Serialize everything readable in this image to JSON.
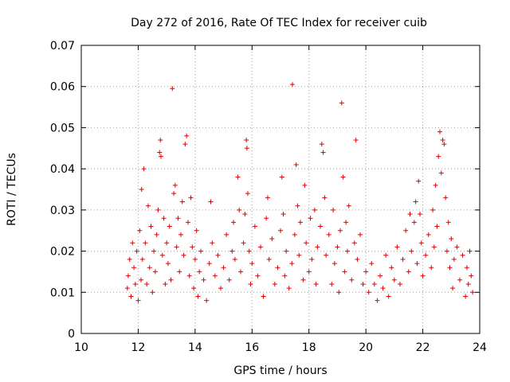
{
  "chart_data": {
    "type": "scatter",
    "title": "Day 272 of 2016, Rate Of TEC Index for receiver cuib",
    "xlabel": "GPS time / hours",
    "ylabel": "ROTI / TECUs",
    "xlim": [
      10,
      24
    ],
    "ylim": [
      0,
      0.07
    ],
    "x_ticks": [
      "10",
      "12",
      "14",
      "16",
      "18",
      "20",
      "22",
      "24"
    ],
    "y_ticks": [
      "0",
      "0.01",
      "0.02",
      "0.03",
      "0.04",
      "0.05",
      "0.06",
      "0.07"
    ],
    "grid": true,
    "marker": "plus",
    "color": "#e00000",
    "series": [
      {
        "name": "ROTI",
        "points": [
          [
            11.62,
            0.011
          ],
          [
            11.65,
            0.014
          ],
          [
            11.7,
            0.018
          ],
          [
            11.75,
            0.009
          ],
          [
            11.8,
            0.022
          ],
          [
            11.85,
            0.016
          ],
          [
            11.9,
            0.012
          ],
          [
            11.95,
            0.02
          ],
          [
            12.0,
            0.008
          ],
          [
            12.05,
            0.025
          ],
          [
            12.1,
            0.013
          ],
          [
            12.12,
            0.035
          ],
          [
            12.15,
            0.018
          ],
          [
            12.2,
            0.04
          ],
          [
            12.25,
            0.022
          ],
          [
            12.3,
            0.012
          ],
          [
            12.35,
            0.031
          ],
          [
            12.4,
            0.016
          ],
          [
            12.45,
            0.026
          ],
          [
            12.5,
            0.01
          ],
          [
            12.55,
            0.02
          ],
          [
            12.6,
            0.015
          ],
          [
            12.65,
            0.024
          ],
          [
            12.7,
            0.03
          ],
          [
            12.75,
            0.044
          ],
          [
            12.78,
            0.047
          ],
          [
            12.8,
            0.043
          ],
          [
            12.85,
            0.019
          ],
          [
            12.9,
            0.028
          ],
          [
            12.95,
            0.012
          ],
          [
            13.0,
            0.022
          ],
          [
            13.05,
            0.017
          ],
          [
            13.1,
            0.026
          ],
          [
            13.15,
            0.013
          ],
          [
            13.2,
            0.0595
          ],
          [
            13.25,
            0.034
          ],
          [
            13.3,
            0.036
          ],
          [
            13.35,
            0.021
          ],
          [
            13.4,
            0.028
          ],
          [
            13.45,
            0.015
          ],
          [
            13.5,
            0.024
          ],
          [
            13.55,
            0.032
          ],
          [
            13.6,
            0.019
          ],
          [
            13.65,
            0.046
          ],
          [
            13.7,
            0.048
          ],
          [
            13.75,
            0.027
          ],
          [
            13.8,
            0.014
          ],
          [
            13.85,
            0.033
          ],
          [
            13.9,
            0.021
          ],
          [
            13.95,
            0.011
          ],
          [
            14.0,
            0.018
          ],
          [
            14.05,
            0.025
          ],
          [
            14.1,
            0.009
          ],
          [
            14.15,
            0.015
          ],
          [
            14.2,
            0.02
          ],
          [
            14.3,
            0.013
          ],
          [
            14.4,
            0.008
          ],
          [
            14.5,
            0.017
          ],
          [
            14.55,
            0.032
          ],
          [
            14.6,
            0.022
          ],
          [
            14.7,
            0.014
          ],
          [
            14.8,
            0.019
          ],
          [
            14.9,
            0.011
          ],
          [
            15.0,
            0.016
          ],
          [
            15.1,
            0.024
          ],
          [
            15.2,
            0.013
          ],
          [
            15.3,
            0.02
          ],
          [
            15.35,
            0.027
          ],
          [
            15.4,
            0.018
          ],
          [
            15.5,
            0.038
          ],
          [
            15.55,
            0.03
          ],
          [
            15.6,
            0.015
          ],
          [
            15.7,
            0.022
          ],
          [
            15.75,
            0.029
          ],
          [
            15.8,
            0.047
          ],
          [
            15.82,
            0.045
          ],
          [
            15.85,
            0.034
          ],
          [
            15.9,
            0.02
          ],
          [
            15.95,
            0.012
          ],
          [
            16.0,
            0.017
          ],
          [
            16.1,
            0.026
          ],
          [
            16.2,
            0.014
          ],
          [
            16.3,
            0.021
          ],
          [
            16.4,
            0.009
          ],
          [
            16.5,
            0.028
          ],
          [
            16.55,
            0.033
          ],
          [
            16.6,
            0.018
          ],
          [
            16.7,
            0.023
          ],
          [
            16.8,
            0.012
          ],
          [
            16.9,
            0.016
          ],
          [
            17.0,
            0.025
          ],
          [
            17.05,
            0.038
          ],
          [
            17.1,
            0.029
          ],
          [
            17.15,
            0.014
          ],
          [
            17.2,
            0.02
          ],
          [
            17.3,
            0.011
          ],
          [
            17.4,
            0.017
          ],
          [
            17.42,
            0.0605
          ],
          [
            17.5,
            0.024
          ],
          [
            17.55,
            0.041
          ],
          [
            17.6,
            0.031
          ],
          [
            17.65,
            0.019
          ],
          [
            17.7,
            0.027
          ],
          [
            17.8,
            0.013
          ],
          [
            17.85,
            0.036
          ],
          [
            17.9,
            0.022
          ],
          [
            18.0,
            0.015
          ],
          [
            18.05,
            0.028
          ],
          [
            18.1,
            0.018
          ],
          [
            18.2,
            0.03
          ],
          [
            18.25,
            0.012
          ],
          [
            18.3,
            0.021
          ],
          [
            18.4,
            0.026
          ],
          [
            18.45,
            0.046
          ],
          [
            18.5,
            0.044
          ],
          [
            18.55,
            0.033
          ],
          [
            18.6,
            0.019
          ],
          [
            18.7,
            0.024
          ],
          [
            18.8,
            0.012
          ],
          [
            18.85,
            0.03
          ],
          [
            18.9,
            0.017
          ],
          [
            19.0,
            0.021
          ],
          [
            19.05,
            0.01
          ],
          [
            19.1,
            0.025
          ],
          [
            19.15,
            0.056
          ],
          [
            19.2,
            0.038
          ],
          [
            19.25,
            0.015
          ],
          [
            19.3,
            0.027
          ],
          [
            19.35,
            0.02
          ],
          [
            19.4,
            0.031
          ],
          [
            19.5,
            0.013
          ],
          [
            19.6,
            0.022
          ],
          [
            19.65,
            0.047
          ],
          [
            19.7,
            0.018
          ],
          [
            19.8,
            0.024
          ],
          [
            19.9,
            0.012
          ],
          [
            20.0,
            0.015
          ],
          [
            20.1,
            0.01
          ],
          [
            20.2,
            0.017
          ],
          [
            20.3,
            0.012
          ],
          [
            20.4,
            0.008
          ],
          [
            20.5,
            0.014
          ],
          [
            20.6,
            0.011
          ],
          [
            20.7,
            0.019
          ],
          [
            20.8,
            0.009
          ],
          [
            20.9,
            0.016
          ],
          [
            21.0,
            0.013
          ],
          [
            21.1,
            0.021
          ],
          [
            21.2,
            0.012
          ],
          [
            21.3,
            0.018
          ],
          [
            21.4,
            0.025
          ],
          [
            21.5,
            0.015
          ],
          [
            21.55,
            0.029
          ],
          [
            21.6,
            0.02
          ],
          [
            21.7,
            0.027
          ],
          [
            21.75,
            0.032
          ],
          [
            21.8,
            0.017
          ],
          [
            21.85,
            0.037
          ],
          [
            21.9,
            0.029
          ],
          [
            21.95,
            0.022
          ],
          [
            22.0,
            0.014
          ],
          [
            22.1,
            0.019
          ],
          [
            22.2,
            0.024
          ],
          [
            22.3,
            0.016
          ],
          [
            22.35,
            0.03
          ],
          [
            22.4,
            0.021
          ],
          [
            22.45,
            0.036
          ],
          [
            22.5,
            0.026
          ],
          [
            22.55,
            0.043
          ],
          [
            22.6,
            0.049
          ],
          [
            22.65,
            0.039
          ],
          [
            22.7,
            0.047
          ],
          [
            22.75,
            0.046
          ],
          [
            22.8,
            0.033
          ],
          [
            22.85,
            0.02
          ],
          [
            22.9,
            0.027
          ],
          [
            22.95,
            0.016
          ],
          [
            23.0,
            0.023
          ],
          [
            23.05,
            0.011
          ],
          [
            23.1,
            0.018
          ],
          [
            23.2,
            0.021
          ],
          [
            23.3,
            0.013
          ],
          [
            23.4,
            0.019
          ],
          [
            23.5,
            0.009
          ],
          [
            23.55,
            0.016
          ],
          [
            23.6,
            0.012
          ],
          [
            23.65,
            0.02
          ],
          [
            23.7,
            0.014
          ],
          [
            23.75,
            0.01
          ]
        ]
      }
    ]
  }
}
